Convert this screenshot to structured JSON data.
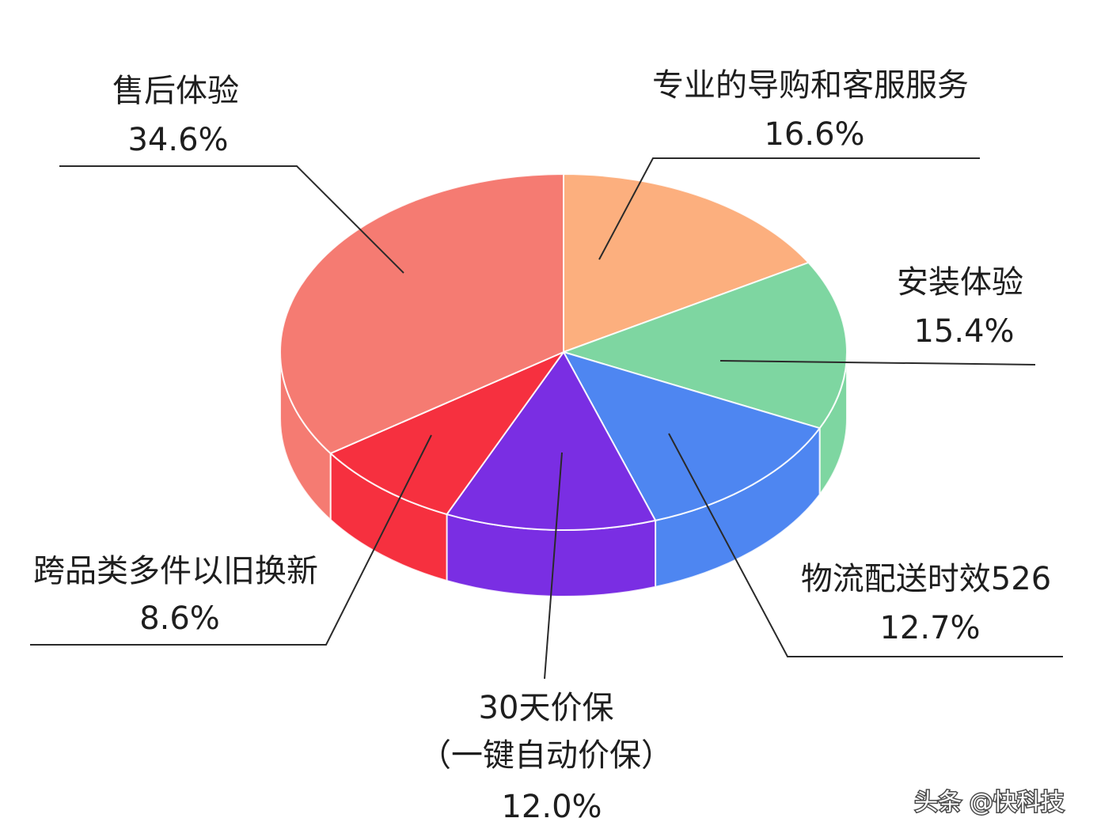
{
  "chart_data": {
    "type": "pie",
    "three_d": true,
    "slices": [
      {
        "label": "专业的导购和客服服务",
        "value": 16.6,
        "value_label": "16.6%",
        "color": "#FCAF7E"
      },
      {
        "label": "安装体验",
        "value": 15.4,
        "value_label": "15.4%",
        "color": "#7ED6A1"
      },
      {
        "label": "物流配送时效526",
        "value": 12.7,
        "value_label": "12.7%",
        "color": "#4E86F1"
      },
      {
        "label": "30天价保",
        "label_line2": "（一键自动价保）",
        "value": 12.0,
        "value_label": "12.0%",
        "color": "#7A2EE3"
      },
      {
        "label": "跨品类多件以旧换新",
        "value": 8.6,
        "value_label": "8.6%",
        "color": "#F6303F"
      },
      {
        "label": "售后体验",
        "value": 34.6,
        "value_label": "34.6%",
        "color": "#F57B72"
      }
    ]
  },
  "watermark": "头条 @快科技"
}
